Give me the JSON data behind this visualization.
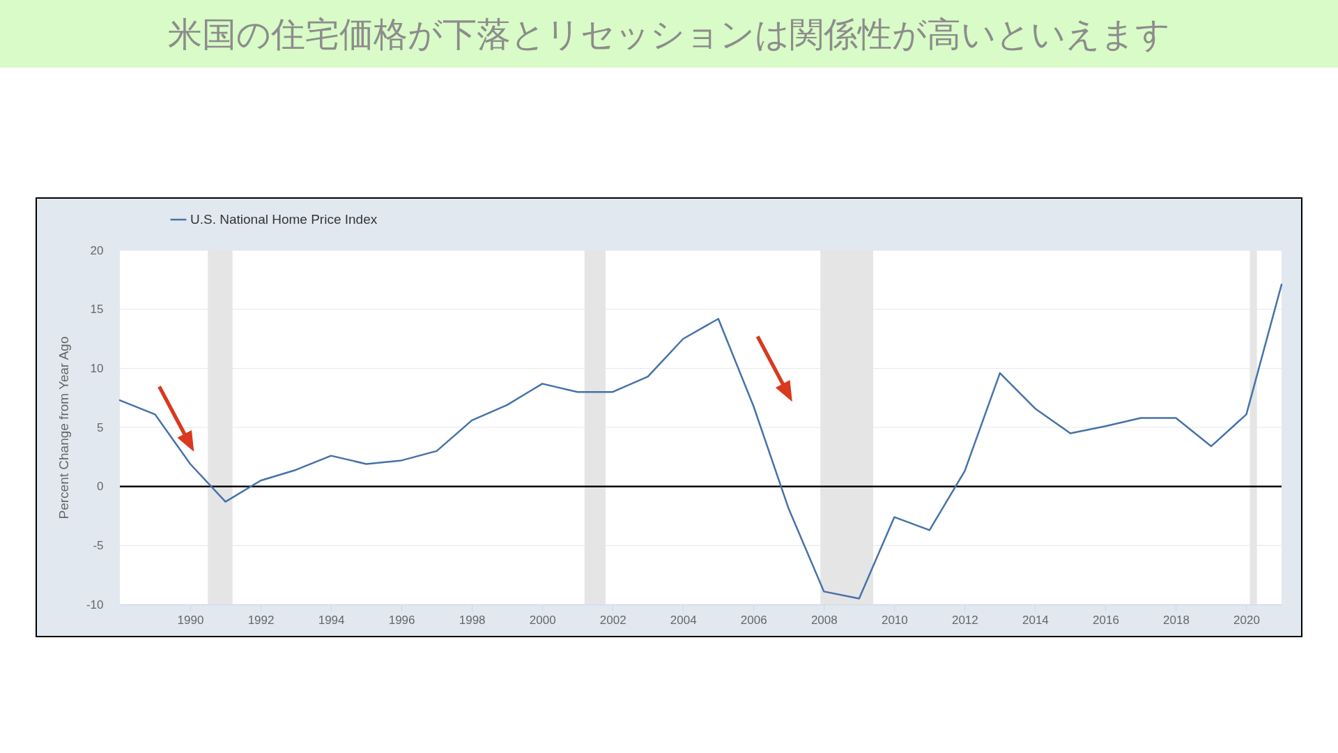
{
  "chart_data": {
    "type": "line",
    "title": "米国の住宅価格が下落とリセッションは関係性が高いといえます",
    "ylabel": "Percent Change from Year Ago",
    "x": [
      1988,
      1989,
      1990,
      1991,
      1992,
      1993,
      1994,
      1995,
      1996,
      1997,
      1998,
      1999,
      2000,
      2001,
      2002,
      2003,
      2004,
      2005,
      2006,
      2007,
      2008,
      2009,
      2010,
      2011,
      2012,
      2013,
      2014,
      2015,
      2016,
      2017,
      2018,
      2019,
      2020,
      2021
    ],
    "series": [
      {
        "name": "U.S. National Home Price Index",
        "color": "#4572a7",
        "values": [
          7.3,
          6.1,
          1.9,
          -1.3,
          0.5,
          1.4,
          2.6,
          1.9,
          2.2,
          3.0,
          5.6,
          6.9,
          8.7,
          8.0,
          8.0,
          9.3,
          12.5,
          14.2,
          6.8,
          -1.9,
          -8.9,
          -9.5,
          -2.6,
          -3.7,
          1.3,
          9.6,
          6.6,
          4.5,
          5.1,
          5.8,
          5.8,
          3.4,
          6.1,
          17.1
        ]
      }
    ],
    "xlim": [
      1988,
      2021
    ],
    "ylim": [
      -10,
      20
    ],
    "xticks": [
      1990,
      1992,
      1994,
      1996,
      1998,
      2000,
      2002,
      2004,
      2006,
      2008,
      2010,
      2012,
      2014,
      2016,
      2018,
      2020
    ],
    "yticks": [
      -10,
      -5,
      0,
      5,
      10,
      15,
      20
    ],
    "grid": "y",
    "legend": "top left",
    "ref_lines": [
      {
        "axis": "y",
        "value": 0,
        "color": "#000000"
      }
    ],
    "bands": [
      {
        "axis": "x",
        "from": 1990.5,
        "to": 1991.2,
        "color": "#e5e5e5"
      },
      {
        "axis": "x",
        "from": 2001.2,
        "to": 2001.8,
        "color": "#e5e5e5"
      },
      {
        "axis": "x",
        "from": 2007.9,
        "to": 2009.4,
        "color": "#e5e5e5"
      },
      {
        "axis": "x",
        "from": 2020.1,
        "to": 2020.3,
        "color": "#e5e5e5"
      }
    ]
  }
}
